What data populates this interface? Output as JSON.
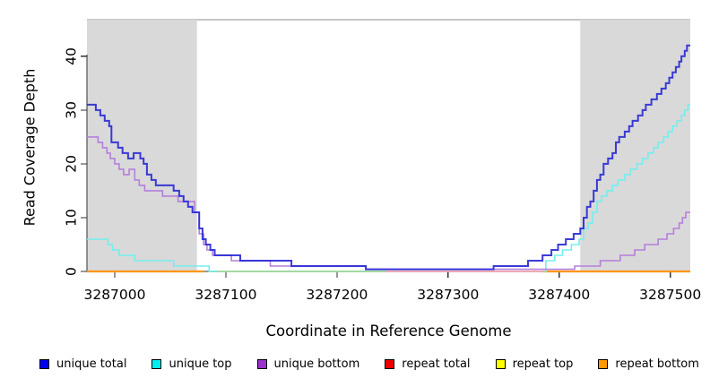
{
  "chart_data": {
    "type": "line",
    "subtype": "step-coverage",
    "title": "",
    "xlabel": "Coordinate in Reference Genome",
    "ylabel": "Read Coverage Depth",
    "xlim": [
      3286975,
      3287518
    ],
    "ylim": [
      0,
      46.8
    ],
    "xticks": [
      3287000,
      3287100,
      3287200,
      3287300,
      3287400,
      3287500
    ],
    "yticks": [
      0,
      10,
      20,
      30,
      40
    ],
    "grid": false,
    "legend_position": "bottom",
    "box_color": "#8c8c8c",
    "axis_color": "#333333",
    "shaded_regions": [
      {
        "x1": 3286975,
        "x2": 3287074,
        "color": "#d9d9d9"
      },
      {
        "x1": 3287419,
        "x2": 3287518,
        "color": "#d9d9d9"
      }
    ],
    "draw_order": [
      4,
      3,
      5,
      1,
      2,
      0
    ],
    "series": [
      {
        "name": "unique total",
        "color": "#2b2bd5",
        "width": 2.0,
        "opacity": 0.92,
        "paths": [
          [
            [
              3286975,
              31
            ],
            [
              3286983,
              30
            ],
            [
              3286987,
              29
            ],
            [
              3286991,
              28
            ],
            [
              3286995,
              27
            ],
            [
              3286997,
              24
            ],
            [
              3287003,
              23
            ],
            [
              3287007,
              22
            ],
            [
              3287012,
              21
            ],
            [
              3287017,
              22
            ],
            [
              3287023,
              21
            ],
            [
              3287026,
              20
            ],
            [
              3287029,
              18
            ],
            [
              3287033,
              17
            ],
            [
              3287037,
              16
            ],
            [
              3287053,
              15
            ],
            [
              3287058,
              14
            ],
            [
              3287062,
              13
            ],
            [
              3287066,
              12
            ],
            [
              3287070,
              11
            ],
            [
              3287076,
              8
            ],
            [
              3287079,
              6
            ],
            [
              3287082,
              5
            ],
            [
              3287086,
              4
            ],
            [
              3287090,
              3
            ],
            [
              3287113,
              2
            ],
            [
              3287159,
              1
            ],
            [
              3287226,
              0.4
            ],
            [
              3287341,
              1
            ],
            [
              3287372,
              2
            ],
            [
              3287385,
              3
            ],
            [
              3287393,
              4
            ],
            [
              3287399,
              5
            ],
            [
              3287406,
              6
            ],
            [
              3287413,
              7
            ],
            [
              3287419,
              8
            ],
            [
              3287422,
              10
            ],
            [
              3287425,
              12
            ],
            [
              3287428,
              13
            ],
            [
              3287431,
              15
            ],
            [
              3287434,
              17
            ],
            [
              3287437,
              18
            ],
            [
              3287440,
              20
            ],
            [
              3287444,
              21
            ],
            [
              3287448,
              22
            ],
            [
              3287451,
              24
            ],
            [
              3287454,
              25
            ],
            [
              3287459,
              26
            ],
            [
              3287463,
              27
            ],
            [
              3287466,
              28
            ],
            [
              3287471,
              29
            ],
            [
              3287475,
              30
            ],
            [
              3287478,
              31
            ],
            [
              3287483,
              32
            ],
            [
              3287488,
              33
            ],
            [
              3287492,
              34
            ],
            [
              3287496,
              35
            ],
            [
              3287499,
              36
            ],
            [
              3287502,
              37
            ],
            [
              3287505,
              38
            ],
            [
              3287508,
              39
            ],
            [
              3287510,
              40
            ],
            [
              3287513,
              41
            ],
            [
              3287515,
              42
            ],
            [
              3287518,
              42
            ]
          ]
        ]
      },
      {
        "name": "unique top",
        "color": "#76eded",
        "width": 1.6,
        "opacity": 1,
        "paths": [
          [
            [
              3286975,
              6
            ],
            [
              3286994,
              5
            ],
            [
              3286998,
              4
            ],
            [
              3287004,
              3
            ],
            [
              3287018,
              2
            ],
            [
              3287053,
              1
            ],
            [
              3287085,
              0
            ],
            [
              3287092,
              0
            ]
          ],
          [
            [
              3287385,
              0
            ],
            [
              3287388,
              2
            ],
            [
              3287396,
              3
            ],
            [
              3287403,
              4
            ],
            [
              3287411,
              5
            ],
            [
              3287418,
              6
            ],
            [
              3287422,
              8
            ],
            [
              3287426,
              9
            ],
            [
              3287430,
              11
            ],
            [
              3287434,
              13
            ],
            [
              3287438,
              14
            ],
            [
              3287443,
              15
            ],
            [
              3287448,
              16
            ],
            [
              3287453,
              17
            ],
            [
              3287459,
              18
            ],
            [
              3287464,
              19
            ],
            [
              3287470,
              20
            ],
            [
              3287475,
              21
            ],
            [
              3287480,
              22
            ],
            [
              3287485,
              23
            ],
            [
              3287489,
              24
            ],
            [
              3287494,
              25
            ],
            [
              3287498,
              26
            ],
            [
              3287502,
              27
            ],
            [
              3287506,
              28
            ],
            [
              3287510,
              29
            ],
            [
              3287513,
              30
            ],
            [
              3287516,
              31
            ],
            [
              3287518,
              31
            ]
          ]
        ]
      },
      {
        "name": "unique bottom",
        "color": "#b57fdc",
        "width": 1.6,
        "opacity": 1,
        "paths": [
          [
            [
              3286975,
              25
            ],
            [
              3286985,
              24
            ],
            [
              3286989,
              23
            ],
            [
              3286993,
              22
            ],
            [
              3286996,
              21
            ],
            [
              3287000,
              20
            ],
            [
              3287004,
              19
            ],
            [
              3287008,
              18
            ],
            [
              3287013,
              19
            ],
            [
              3287018,
              17
            ],
            [
              3287022,
              16
            ],
            [
              3287027,
              15
            ],
            [
              3287043,
              14
            ],
            [
              3287057,
              13
            ],
            [
              3287072,
              11
            ],
            [
              3287076,
              7
            ],
            [
              3287080,
              5
            ],
            [
              3287083,
              4
            ],
            [
              3287088,
              3
            ],
            [
              3287105,
              2
            ],
            [
              3287140,
              1
            ],
            [
              3287226,
              0.4
            ],
            [
              3287414,
              1
            ],
            [
              3287437,
              2
            ],
            [
              3287455,
              3
            ],
            [
              3287468,
              4
            ],
            [
              3287477,
              5
            ],
            [
              3287489,
              6
            ],
            [
              3287497,
              7
            ],
            [
              3287503,
              8
            ],
            [
              3287508,
              9
            ],
            [
              3287511,
              10
            ],
            [
              3287514,
              11
            ],
            [
              3287518,
              11
            ]
          ]
        ]
      },
      {
        "name": "repeat total",
        "color": "#ec9cab",
        "width": 1.8,
        "opacity": 1,
        "paths": [
          [
            [
              3287244,
              0
            ],
            [
              3287385,
              0
            ]
          ]
        ]
      },
      {
        "name": "repeat top",
        "color": "#a3d9a3",
        "width": 2.0,
        "opacity": 1,
        "paths": [
          [
            [
              3287085,
              0
            ],
            [
              3287244,
              0
            ]
          ]
        ]
      },
      {
        "name": "repeat bottom",
        "color": "#ff9614",
        "width": 2.2,
        "opacity": 1,
        "paths": [
          [
            [
              3286975,
              0
            ],
            [
              3287080,
              0
            ]
          ],
          [
            [
              3287385,
              0
            ],
            [
              3287518,
              0
            ]
          ]
        ]
      }
    ]
  },
  "axes": {
    "xlabel": "Coordinate in Reference Genome",
    "ylabel": "Read Coverage Depth"
  },
  "legend": {
    "items": [
      {
        "label": "unique total",
        "color": "#0000ee"
      },
      {
        "label": "unique top",
        "color": "#00eeee"
      },
      {
        "label": "unique bottom",
        "color": "#9932cc"
      },
      {
        "label": "repeat total",
        "color": "#ee0000"
      },
      {
        "label": "repeat top",
        "color": "#ffff00"
      },
      {
        "label": "repeat bottom",
        "color": "#ff9900"
      }
    ]
  }
}
